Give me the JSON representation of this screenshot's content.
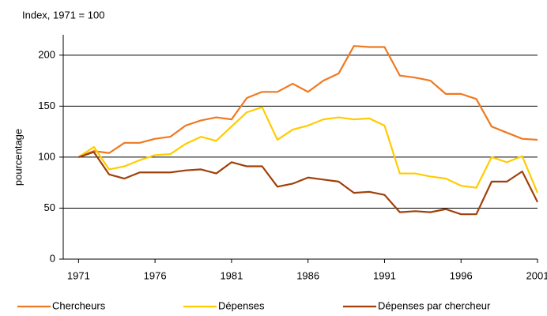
{
  "chart_data": {
    "type": "line",
    "subtitle": "Index, 1971 = 100",
    "y_label": "pourcentage",
    "x": [
      1971,
      1972,
      1973,
      1974,
      1975,
      1976,
      1977,
      1978,
      1979,
      1980,
      1981,
      1982,
      1983,
      1984,
      1985,
      1986,
      1987,
      1988,
      1989,
      1990,
      1991,
      1992,
      1993,
      1994,
      1995,
      1996,
      1997,
      1998,
      1999,
      2000,
      2001
    ],
    "series": [
      {
        "name": "Chercheurs",
        "color": "#f07820",
        "values": [
          100,
          106,
          104,
          114,
          114,
          118,
          120,
          131,
          136,
          139,
          137,
          158,
          164,
          164,
          172,
          164,
          175,
          182,
          209,
          208,
          208,
          180,
          178,
          175,
          162,
          162,
          157,
          130,
          124,
          118,
          117
        ]
      },
      {
        "name": "Dépenses",
        "color": "#ffcc00",
        "values": [
          100,
          110,
          88,
          91,
          97,
          102,
          103,
          113,
          120,
          116,
          130,
          144,
          149,
          117,
          127,
          131,
          137,
          139,
          137,
          138,
          131,
          84,
          84,
          81,
          79,
          72,
          70,
          100,
          95,
          101,
          65
        ]
      },
      {
        "name": "Dépenses par chercheur",
        "color": "#a0400a",
        "values": [
          100,
          105,
          83,
          79,
          85,
          85,
          85,
          87,
          88,
          84,
          95,
          91,
          91,
          71,
          74,
          80,
          78,
          76,
          65,
          66,
          63,
          46,
          47,
          46,
          49,
          44,
          44,
          76,
          76,
          86,
          56
        ]
      }
    ],
    "xlim": [
      1970,
      2001
    ],
    "xticks": [
      1971,
      1976,
      1981,
      1986,
      1991,
      1996,
      2001
    ],
    "ylim": [
      0,
      220
    ],
    "yticks": [
      0,
      50,
      100,
      150,
      200
    ],
    "grid": true,
    "legend": "bottom"
  }
}
